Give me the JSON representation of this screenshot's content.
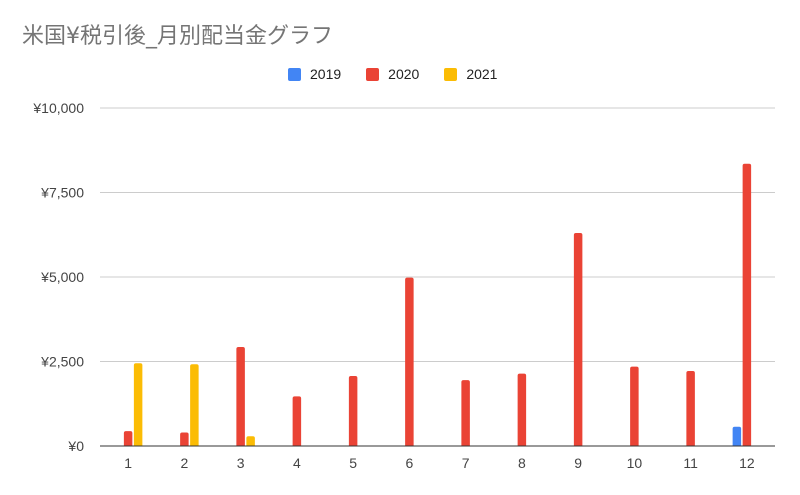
{
  "chart_data": {
    "type": "bar",
    "title": "米国¥税引後_月別配当金グラフ",
    "xlabel": "",
    "ylabel": "",
    "categories": [
      "1",
      "2",
      "3",
      "4",
      "5",
      "6",
      "7",
      "8",
      "9",
      "10",
      "11",
      "12"
    ],
    "series": [
      {
        "name": "2019",
        "color": "#4285f4",
        "values": [
          0,
          0,
          0,
          0,
          0,
          0,
          0,
          0,
          0,
          0,
          0,
          570
        ]
      },
      {
        "name": "2020",
        "color": "#ea4335",
        "values": [
          440,
          400,
          2930,
          1470,
          2070,
          4980,
          1950,
          2140,
          6300,
          2350,
          2220,
          8350
        ]
      },
      {
        "name": "2021",
        "color": "#fbbc04",
        "values": [
          2450,
          2420,
          290,
          0,
          0,
          0,
          0,
          0,
          0,
          0,
          0,
          0
        ]
      }
    ],
    "ylim": [
      0,
      10000
    ],
    "yticks": [
      0,
      2500,
      5000,
      7500,
      10000
    ],
    "ytick_labels": [
      "¥0",
      "¥2,500",
      "¥5,000",
      "¥7,500",
      "¥10,000"
    ],
    "grid": true,
    "legend_position": "top"
  }
}
